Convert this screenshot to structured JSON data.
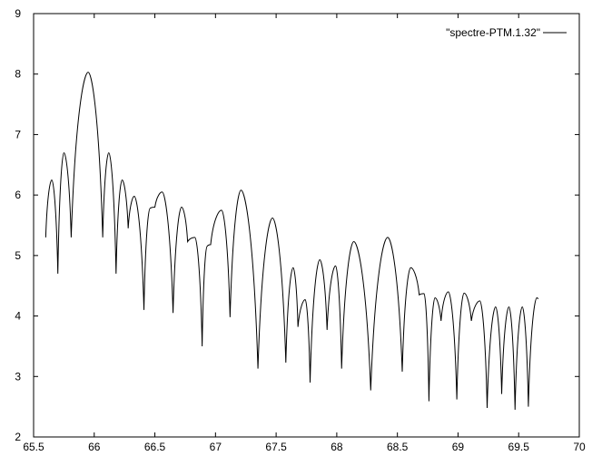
{
  "chart_data": {
    "type": "line",
    "title": "",
    "xlabel": "",
    "ylabel": "",
    "xlim": [
      65.5,
      70
    ],
    "ylim": [
      2,
      9
    ],
    "x_ticks": [
      "65.5",
      "66",
      "66.5",
      "67",
      "67.5",
      "68",
      "68.5",
      "69",
      "69.5",
      "70"
    ],
    "y_ticks": [
      "2",
      "3",
      "4",
      "5",
      "6",
      "7",
      "8",
      "9"
    ],
    "grid": false,
    "legend_position": "top-right",
    "series": [
      {
        "name": "\"spectre-PTM.1.32\"",
        "color": "#000000",
        "points": [
          [
            65.6,
            5.3
          ],
          [
            65.65,
            6.25
          ],
          [
            65.7,
            4.7
          ],
          [
            65.75,
            6.7
          ],
          [
            65.81,
            5.3
          ],
          [
            65.95,
            8.03
          ],
          [
            66.07,
            5.3
          ],
          [
            66.12,
            6.7
          ],
          [
            66.18,
            4.7
          ],
          [
            66.23,
            6.25
          ],
          [
            66.28,
            5.45
          ],
          [
            66.33,
            5.98
          ],
          [
            66.41,
            4.1
          ],
          [
            66.46,
            5.78
          ],
          [
            66.5,
            5.8
          ],
          [
            66.56,
            6.05
          ],
          [
            66.65,
            4.05
          ],
          [
            66.72,
            5.8
          ],
          [
            66.77,
            5.23
          ],
          [
            66.83,
            5.3
          ],
          [
            66.89,
            3.5
          ],
          [
            66.93,
            5.15
          ],
          [
            66.96,
            5.18
          ],
          [
            67.05,
            5.75
          ],
          [
            67.12,
            3.98
          ],
          [
            67.21,
            6.08
          ],
          [
            67.35,
            3.13
          ],
          [
            67.47,
            5.62
          ],
          [
            67.58,
            3.23
          ],
          [
            67.64,
            4.8
          ],
          [
            67.68,
            3.82
          ],
          [
            67.74,
            4.27
          ],
          [
            67.78,
            2.9
          ],
          [
            67.86,
            4.93
          ],
          [
            67.92,
            3.77
          ],
          [
            67.99,
            4.83
          ],
          [
            68.04,
            3.13
          ],
          [
            68.14,
            5.23
          ],
          [
            68.28,
            2.77
          ],
          [
            68.42,
            5.3
          ],
          [
            68.54,
            3.08
          ],
          [
            68.61,
            4.8
          ],
          [
            68.68,
            4.35
          ],
          [
            68.72,
            4.37
          ],
          [
            68.76,
            2.59
          ],
          [
            68.81,
            4.3
          ],
          [
            68.86,
            3.92
          ],
          [
            68.92,
            4.4
          ],
          [
            68.99,
            2.62
          ],
          [
            69.05,
            4.38
          ],
          [
            69.11,
            3.92
          ],
          [
            69.18,
            4.25
          ],
          [
            69.24,
            2.48
          ],
          [
            69.31,
            4.15
          ],
          [
            69.36,
            2.71
          ],
          [
            69.42,
            4.15
          ],
          [
            69.47,
            2.45
          ],
          [
            69.53,
            4.15
          ],
          [
            69.58,
            2.5
          ],
          [
            69.65,
            4.3
          ],
          [
            69.66,
            4.28
          ]
        ]
      }
    ]
  }
}
